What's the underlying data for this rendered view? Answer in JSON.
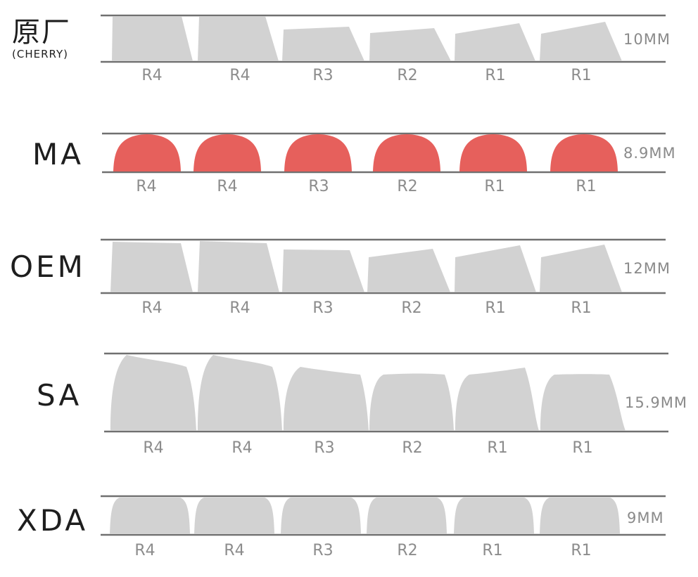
{
  "colors": {
    "line": "#707070",
    "gray_cap": "#d2d2d2",
    "red_cap": "#e6605c",
    "label": "#1e1e1e",
    "muted": "#8a8a8a"
  },
  "profiles": [
    {
      "name": "原厂",
      "subtitle": "(CHERRY)",
      "height_label": "10MM",
      "color_key": "gray_cap",
      "cap_shape": "sculpted",
      "rows": [
        "R4",
        "R4",
        "R3",
        "R2",
        "R1",
        "R1"
      ]
    },
    {
      "name": "MA",
      "subtitle": "",
      "height_label": "8.9MM",
      "color_key": "red_cap",
      "cap_shape": "dome",
      "rows": [
        "R4",
        "R4",
        "R3",
        "R2",
        "R1",
        "R1"
      ]
    },
    {
      "name": "OEM",
      "subtitle": "",
      "height_label": "12MM",
      "color_key": "gray_cap",
      "cap_shape": "sculpted",
      "rows": [
        "R4",
        "R4",
        "R3",
        "R2",
        "R1",
        "R1"
      ]
    },
    {
      "name": "SA",
      "subtitle": "",
      "height_label": "15.9MM",
      "color_key": "gray_cap",
      "cap_shape": "tall-sculpted",
      "rows": [
        "R4",
        "R4",
        "R3",
        "R2",
        "R1",
        "R1"
      ]
    },
    {
      "name": "XDA",
      "subtitle": "",
      "height_label": "9MM",
      "color_key": "gray_cap",
      "cap_shape": "flat",
      "rows": [
        "R4",
        "R4",
        "R3",
        "R2",
        "R1",
        "R1"
      ]
    }
  ]
}
